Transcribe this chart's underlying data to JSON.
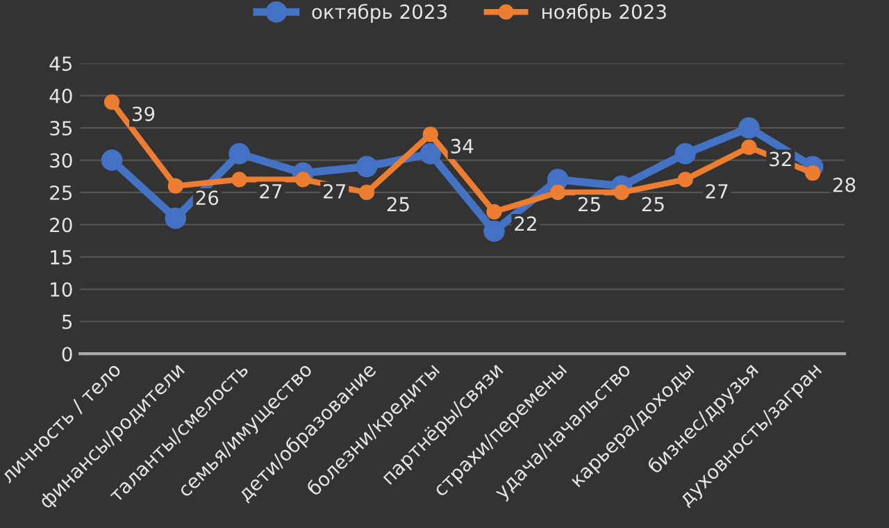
{
  "chart_data": {
    "type": "line",
    "categories": [
      "личность / тело",
      "финансы/родители",
      "таланты/смелость",
      "семья/имущество",
      "дети/образование",
      "болезни/кредиты",
      "партнёры/связи",
      "страхи/перемены",
      "удача/начальство",
      "карьера/доходы",
      "бизнес/друзья",
      "духовность/загран"
    ],
    "series": [
      {
        "name": "октябрь 2023",
        "color": "#4472c4",
        "values": [
          30,
          21,
          31,
          28,
          29,
          31,
          19,
          27,
          26,
          31,
          35,
          29
        ]
      },
      {
        "name": "ноябрь 2023",
        "color": "#ed7d31",
        "values": [
          39,
          26,
          27,
          27,
          25,
          34,
          22,
          25,
          25,
          27,
          32,
          28
        ],
        "value_labels": [
          "39",
          "26",
          "27",
          "27",
          "25",
          "34",
          "22",
          "25",
          "25",
          "27",
          "32",
          "28"
        ]
      }
    ],
    "ylim": [
      0,
      45
    ],
    "yticks": [
      0,
      5,
      10,
      15,
      20,
      25,
      30,
      35,
      40,
      45
    ],
    "grid": "y",
    "legend": "top",
    "marker": "circle",
    "line_style": "solid"
  }
}
